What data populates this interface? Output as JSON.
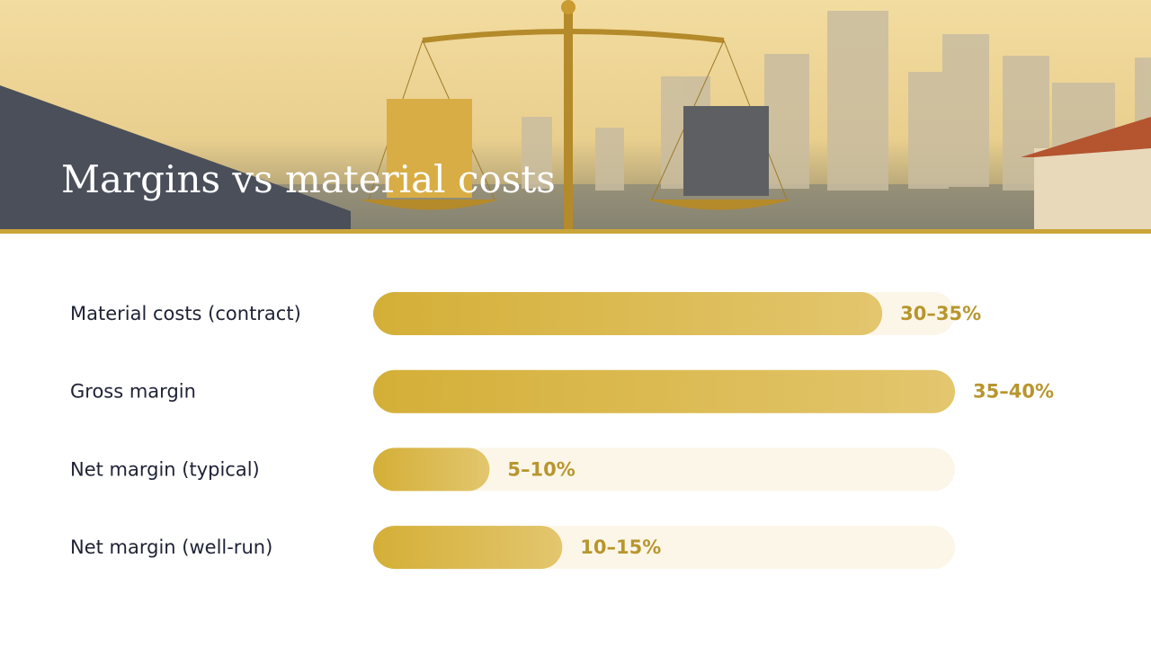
{
  "chart_data": {
    "type": "bar",
    "title": "Margins vs material costs",
    "categories": [
      "Material costs (contract)",
      "Gross margin",
      "Net margin (typical)",
      "Net margin (well-run)"
    ],
    "values": [
      35,
      40,
      8,
      13
    ],
    "value_labels": [
      "30–35%",
      "35–40%",
      "5–10%",
      "10–15%"
    ],
    "color": "#d4af37",
    "xlim": [
      0,
      40
    ]
  }
}
